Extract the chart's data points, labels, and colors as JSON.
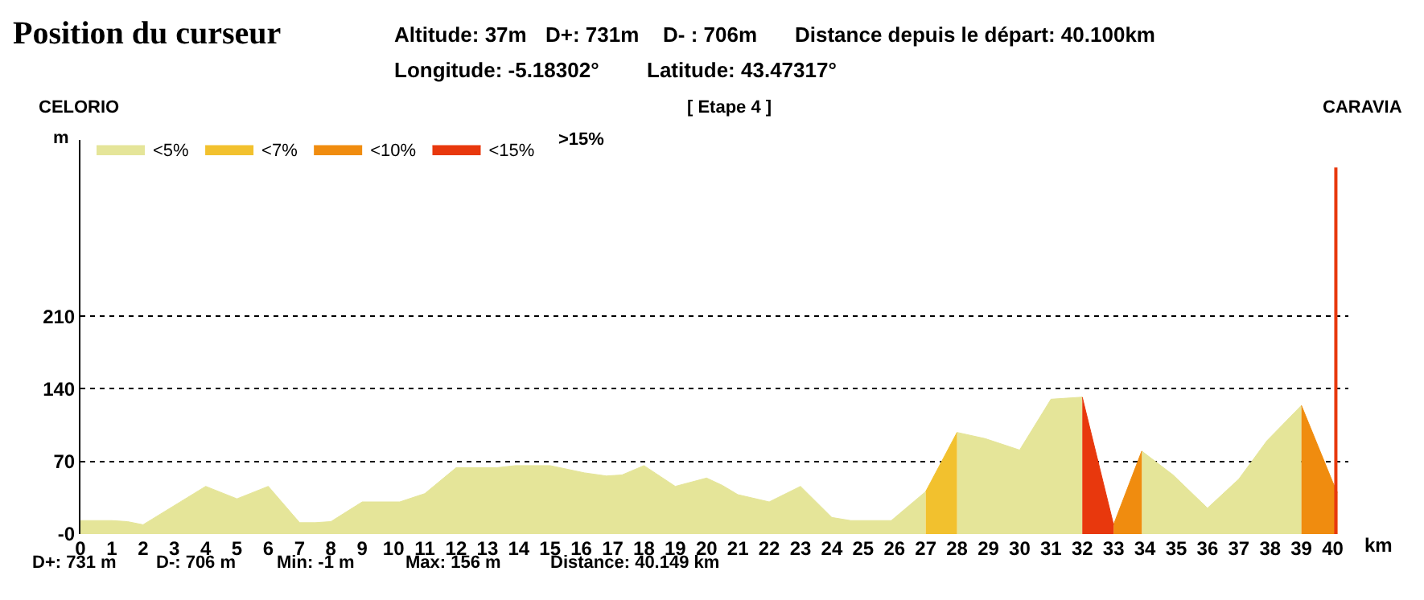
{
  "chart_data": {
    "type": "area",
    "title": "Position du curseur",
    "xlabel": "km",
    "ylabel": "m",
    "annotations": [
      "Altitude: 37m",
      "D+: 731m",
      "D- : 706m",
      "Distance depuis le départ: 40.100km",
      "Longitude: -5.18302°",
      "Latitude: 43.47317°",
      "CELORIO",
      "[ Etape 4 ]",
      "CARAVIA",
      "D+: 731 m",
      "D-: 706 m",
      "Min: -1 m",
      "Max: 156 m",
      "Distance: 40.149 km",
      ">15%"
    ],
    "series": [
      {
        "name": "<5%",
        "color": "#e5e599",
        "x": [
          0,
          1,
          1.5,
          2,
          4,
          5,
          6,
          7,
          7.5,
          8,
          9,
          10.2,
          11,
          12,
          13.3,
          13.9,
          15,
          16.1,
          16.8,
          17.3,
          18,
          19,
          20,
          20.5,
          21,
          22,
          23,
          24,
          24.6,
          25.9,
          27
        ],
        "values": [
          13,
          13,
          12,
          9,
          46,
          34,
          46,
          11,
          11,
          12,
          31,
          31,
          39,
          64,
          64,
          66,
          66,
          59,
          56,
          57,
          66,
          46,
          54,
          47,
          38,
          31,
          46,
          16,
          13,
          13,
          41
        ]
      },
      {
        "color": "#e5e599",
        "x": [
          28,
          28.9,
          30,
          31,
          32
        ],
        "values": [
          98,
          92,
          81,
          130,
          132
        ]
      },
      {
        "color": "#e5e599",
        "x": [
          33.9,
          34.9,
          36,
          37,
          37.9,
          39
        ],
        "values": [
          80,
          57,
          25,
          53,
          90,
          124
        ]
      },
      {
        "name": "<7%",
        "color": "#f2c12e",
        "x": [
          27,
          28
        ],
        "values": [
          41,
          98
        ]
      },
      {
        "name": "<10%",
        "color": "#f08c0f",
        "x": [
          33,
          33.9
        ],
        "values": [
          9,
          80
        ]
      },
      {
        "color": "#f08c0f",
        "x": [
          39,
          40,
          40.15
        ],
        "values": [
          124,
          50,
          40
        ]
      },
      {
        "name": "<15%",
        "color": "#e8380d",
        "x": [
          32,
          33
        ],
        "values": [
          132,
          9
        ]
      }
    ],
    "xlim": [
      0,
      40.5
    ],
    "xticks": [
      0,
      1,
      2,
      3,
      4,
      5,
      6,
      7,
      8,
      9,
      10,
      11,
      12,
      13,
      14,
      15,
      16,
      17,
      18,
      19,
      20,
      21,
      22,
      23,
      24,
      25,
      26,
      27,
      28,
      29,
      30,
      31,
      32,
      33,
      34,
      35,
      36,
      37,
      38,
      39,
      40
    ],
    "ylim": [
      0,
      380
    ],
    "yticks": [
      {
        "value": 0,
        "label": "-0"
      },
      70,
      140,
      210
    ],
    "grid": "y",
    "line_style": "dotted",
    "legend": "top left",
    "ref_lines": [
      {
        "axis": "x",
        "value": 40.1,
        "color": "#e8380d"
      }
    ]
  }
}
